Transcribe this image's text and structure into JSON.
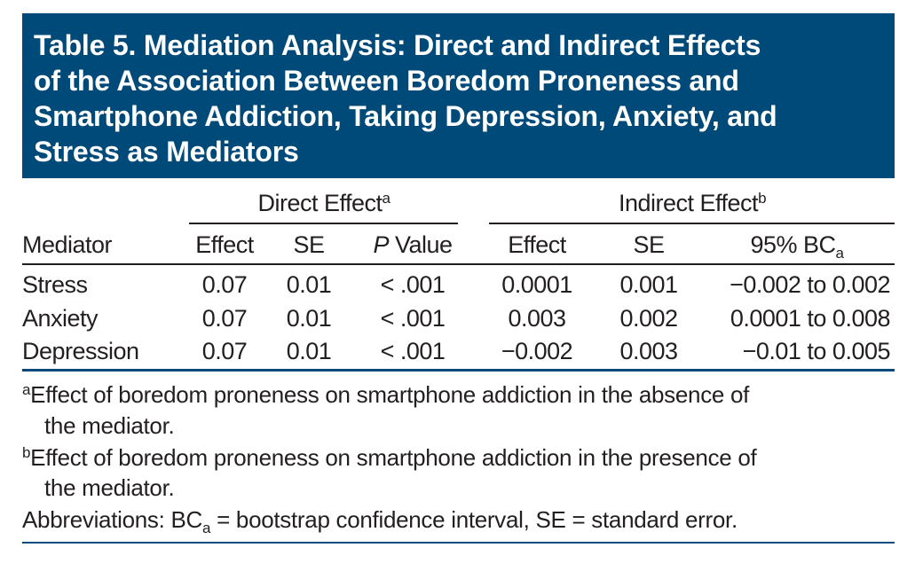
{
  "title": [
    "Table 5. Mediation Analysis: Direct and Indirect Effects",
    "of the Association Between Boredom Proneness and",
    "Smartphone Addiction, Taking Depression, Anxiety, and",
    "Stress as Mediators"
  ],
  "groups": {
    "direct": {
      "label": "Direct Effect",
      "note": "a"
    },
    "indirect": {
      "label": "Indirect Effect",
      "note": "b"
    }
  },
  "columns": {
    "mediator": "Mediator",
    "effect1": "Effect",
    "se1": "SE",
    "p_italic": "P",
    "p_rest": " Value",
    "effect2": "Effect",
    "se2": "SE",
    "ci_main": "95% BC",
    "ci_sub": "a"
  },
  "rows": [
    {
      "mediator": "Stress",
      "effect1": "0.07",
      "se1": "0.01",
      "p": "< .001",
      "effect2": "0.0001",
      "se2": "0.001",
      "ci": "−0.002 to 0.002"
    },
    {
      "mediator": "Anxiety",
      "effect1": "0.07",
      "se1": "0.01",
      "p": "< .001",
      "effect2": "0.003",
      "se2": "0.002",
      "ci": "0.0001 to 0.008"
    },
    {
      "mediator": "Depression",
      "effect1": "0.07",
      "se1": "0.01",
      "p": "< .001",
      "effect2": "−0.002",
      "se2": "0.003",
      "ci": "−0.01 to 0.005"
    }
  ],
  "footnotes": {
    "a_mark": "a",
    "a_line1": "Effect of boredom proneness on smartphone addiction in the absence of",
    "a_line2": "the mediator.",
    "b_mark": "b",
    "b_line1": "Effect of boredom proneness on smartphone addiction in the presence of",
    "b_line2": "the mediator.",
    "abbr_pre": "Abbreviations: BC",
    "abbr_sub": "a",
    "abbr_post": " = bootstrap confidence interval, SE = standard error."
  },
  "colors": {
    "header_bg": "#004a7a"
  }
}
